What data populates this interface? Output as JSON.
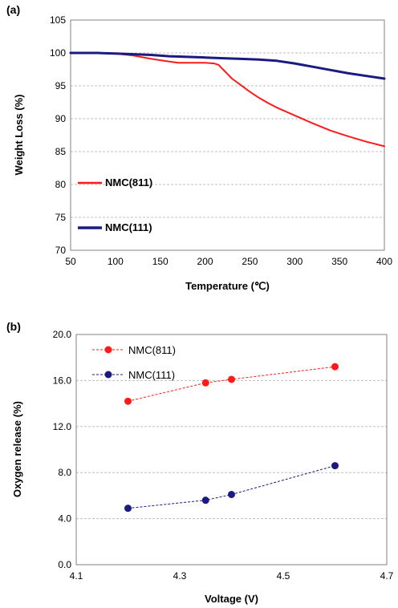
{
  "colors": {
    "nmc811": "#ff1a1a",
    "nmc111": "#1a1a80",
    "grid": "#bfbfbf",
    "axis": "#808080"
  },
  "chart_data": [
    {
      "panel_label": "(a)",
      "type": "line",
      "xlabel": "Temperature (℃)",
      "ylabel": "Weight Loss (%)",
      "xlim": [
        50,
        400
      ],
      "ylim": [
        70,
        105
      ],
      "x_ticks": [
        "50",
        "100",
        "150",
        "200",
        "250",
        "300",
        "350",
        "400"
      ],
      "y_ticks": [
        "70",
        "75",
        "80",
        "85",
        "90",
        "95",
        "100",
        "105"
      ],
      "grid": "horizontal",
      "legend_position": "left",
      "series": [
        {
          "name": "NMC(811)",
          "color": "#ff1a1a",
          "x": [
            50,
            60,
            80,
            100,
            120,
            140,
            160,
            170,
            180,
            200,
            210,
            215,
            220,
            225,
            230,
            240,
            250,
            260,
            270,
            280,
            300,
            320,
            340,
            360,
            380,
            400
          ],
          "y": [
            100.0,
            100.0,
            100.0,
            99.9,
            99.6,
            99.1,
            98.7,
            98.5,
            98.5,
            98.5,
            98.4,
            98.2,
            97.5,
            96.8,
            96.1,
            95.1,
            94.1,
            93.2,
            92.4,
            91.7,
            90.5,
            89.3,
            88.2,
            87.3,
            86.5,
            85.8
          ]
        },
        {
          "name": "NMC(111)",
          "color": "#1a1a80",
          "x": [
            50,
            60,
            80,
            100,
            120,
            140,
            160,
            180,
            200,
            220,
            240,
            260,
            280,
            300,
            320,
            340,
            360,
            380,
            400
          ],
          "y": [
            100.0,
            100.0,
            100.0,
            99.9,
            99.8,
            99.7,
            99.5,
            99.4,
            99.3,
            99.2,
            99.1,
            99.0,
            98.8,
            98.4,
            97.9,
            97.4,
            96.9,
            96.5,
            96.1
          ]
        }
      ]
    },
    {
      "panel_label": "(b)",
      "type": "line",
      "xlabel": "Voltage (V)",
      "ylabel": "Oxygen release (%)",
      "xlim": [
        4.1,
        4.7
      ],
      "ylim": [
        0.0,
        20.0
      ],
      "x_ticks": [
        "4.1",
        "4.3",
        "4.5",
        "4.7"
      ],
      "y_ticks": [
        "0.0",
        "4.0",
        "8.0",
        "12.0",
        "16.0",
        "20.0"
      ],
      "grid": "horizontal",
      "legend_position": "top-left",
      "series": [
        {
          "name": "NMC(811)",
          "color": "#ff1a1a",
          "x": [
            4.2,
            4.35,
            4.4,
            4.6
          ],
          "y": [
            14.2,
            15.8,
            16.1,
            17.2
          ]
        },
        {
          "name": "NMC(111)",
          "color": "#1a1a80",
          "x": [
            4.2,
            4.35,
            4.4,
            4.6
          ],
          "y": [
            4.9,
            5.6,
            6.1,
            8.6
          ]
        }
      ]
    }
  ]
}
